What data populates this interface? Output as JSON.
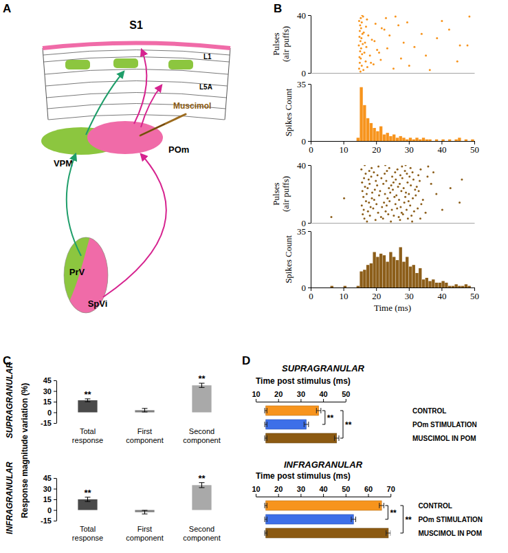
{
  "panel_labels": [
    "A",
    "B",
    "C",
    "D"
  ],
  "diagram": {
    "title": "S1",
    "layers": [
      "L1",
      "L5A"
    ],
    "nuclei": [
      "VPM",
      "POm",
      "PrV",
      "SpVi"
    ],
    "drug": "Muscimol"
  },
  "chart_data": [
    {
      "type": "scatter",
      "y_label": [
        "Pulses",
        "(air puffs)"
      ],
      "color": "#f7941d",
      "marker": "dot",
      "tick_labels": "y",
      "x": [
        15.2,
        16.1,
        14.8,
        17.3,
        15.6,
        19.2,
        15.0,
        16.8,
        21.4,
        15.3,
        14.9,
        18.1,
        15.7,
        16.4,
        15.1,
        20.3,
        15.4,
        17.0,
        14.7,
        15.9,
        16.6,
        15.2,
        18.7,
        15.5,
        14.9,
        17.6,
        15.8,
        16.2,
        15.0,
        22.5,
        15.4,
        16.9,
        15.1,
        19.8,
        15.6,
        14.8,
        17.2,
        15.3,
        16.0,
        15.7,
        25.3,
        30.1,
        18.4,
        44.8,
        27.6,
        35.2,
        20.9,
        23.4,
        31.7,
        45.6,
        47.9,
        28.4,
        19.5,
        38.6,
        24.1,
        33.9,
        42.3,
        21.7,
        26.8,
        29.5,
        40.1,
        23.0,
        48.5,
        25.9,
        36.4
      ],
      "values": [
        1,
        2,
        3,
        4,
        5,
        6,
        7,
        8,
        9,
        10,
        11,
        12,
        13,
        14,
        15,
        16,
        17,
        18,
        19,
        20,
        21,
        22,
        23,
        24,
        25,
        26,
        27,
        28,
        29,
        30,
        31,
        32,
        33,
        34,
        35,
        36,
        37,
        38,
        39,
        40,
        3,
        5,
        7,
        8,
        10,
        12,
        14,
        17,
        18,
        19,
        19,
        21,
        22,
        24,
        26,
        27,
        30,
        31,
        33,
        35,
        36,
        38,
        39,
        39,
        2
      ],
      "xlim": [
        0,
        50
      ],
      "ylim": [
        0,
        40
      ],
      "yticks": [
        0,
        40
      ]
    },
    {
      "type": "histogram",
      "y_label": "Spikes Count",
      "color": "#f7941d",
      "bins": [
        0,
        1,
        2,
        3,
        4,
        5,
        6,
        7,
        8,
        9,
        10,
        11,
        12,
        13,
        14,
        15,
        16,
        17,
        18,
        19,
        20,
        21,
        22,
        23,
        24,
        25,
        26,
        27,
        28,
        29,
        30,
        31,
        32,
        33,
        34,
        35,
        36,
        37,
        38,
        39,
        40,
        41,
        42,
        43,
        44,
        45,
        46,
        47,
        48,
        49,
        50
      ],
      "counts": [
        0,
        0,
        0,
        0,
        0,
        0,
        0,
        0,
        0,
        0,
        0,
        0,
        0,
        0,
        2,
        33,
        22,
        14,
        11,
        8,
        6,
        9,
        4,
        5,
        3,
        4,
        2,
        3,
        2,
        1,
        2,
        1,
        2,
        1,
        2,
        1,
        1,
        0,
        1,
        0,
        1,
        0,
        1,
        0,
        1,
        2,
        0,
        1,
        0,
        1
      ],
      "xlim": [
        0,
        50
      ],
      "xticks": [
        0,
        10,
        20,
        30,
        40,
        50
      ],
      "ylim": [
        0,
        35
      ],
      "yticks": [
        0,
        35
      ]
    },
    {
      "type": "scatter",
      "y_label": [
        "Pulses",
        "(air puffs)"
      ],
      "color": "#8c5e1a",
      "marker": "dot",
      "tick_labels": "y",
      "x": [
        17.2,
        24.5,
        31,
        19.8,
        27.3,
        16.4,
        22.1,
        29.7,
        33.5,
        6.3,
        21.5,
        26.9,
        18.1,
        25.4,
        30.8,
        15.9,
        23.7,
        28.2,
        20.6,
        27.8,
        35.1,
        17.5,
        22.9,
        31.6,
        16.2,
        24.8,
        29.3,
        40.2,
        19.1,
        26.4,
        32.7,
        18.3,
        21.8,
        27.5,
        15.6,
        23.2,
        30.4,
        20.1,
        25.9,
        33.8,
        17.8,
        22.4,
        28.6,
        45.5,
        16.9,
        24.1,
        29.9,
        19.4,
        27.0,
        34.3,
        10.2,
        18.7,
        23.5,
        31.2,
        16.1,
        25.6,
        28.9,
        20.9,
        26.2,
        32.1,
        17.1,
        22.7,
        30,
        38.4,
        18.8,
        24.3,
        29.1,
        15.8,
        21.2,
        27.7,
        33,
        19.6,
        25.1,
        31.9,
        17.4,
        23.9,
        28.4,
        42.7,
        16.6,
        26.7,
        32.4,
        20.3,
        24.6,
        30.6,
        18.0,
        22.2,
        27.2,
        36.8,
        15.7,
        25.3,
        29.6,
        19.9,
        23.1,
        33.3,
        17.7,
        26.0,
        31.4,
        46.2,
        16.3,
        21.6,
        28.0,
        18.5,
        24.9,
        30.2,
        35.7,
        20.4,
        27.4,
        32.9,
        16.8,
        22.6,
        29.4,
        19.3,
        25.8,
        31.1,
        37.5,
        17.9,
        23.3,
        28.8,
        15.5,
        26.5,
        33.6,
        18.6,
        24.0,
        30.5,
        20.7,
        27.9,
        35.9,
        16.5,
        22.8,
        29
      ],
      "values": [
        1,
        1,
        1,
        2,
        2,
        3,
        3,
        3,
        3,
        4,
        4,
        4,
        5,
        5,
        5,
        6,
        6,
        6,
        7,
        7,
        7,
        8,
        8,
        8,
        9,
        9,
        9,
        9,
        10,
        10,
        10,
        11,
        11,
        11,
        12,
        12,
        12,
        13,
        13,
        13,
        14,
        14,
        14,
        14,
        15,
        15,
        15,
        16,
        16,
        16,
        17,
        17,
        17,
        17,
        18,
        18,
        18,
        19,
        19,
        19,
        20,
        20,
        20,
        20,
        21,
        21,
        21,
        22,
        22,
        22,
        22,
        23,
        23,
        23,
        24,
        24,
        24,
        24,
        25,
        25,
        25,
        26,
        26,
        26,
        27,
        27,
        27,
        27,
        28,
        28,
        28,
        29,
        29,
        29,
        30,
        30,
        30,
        30,
        31,
        31,
        31,
        32,
        32,
        32,
        32,
        33,
        33,
        33,
        34,
        34,
        34,
        35,
        35,
        35,
        35,
        36,
        36,
        36,
        37,
        37,
        37,
        38,
        38,
        38,
        39,
        39,
        39,
        40,
        40,
        40
      ],
      "xlim": [
        0,
        50
      ],
      "ylim": [
        0,
        40
      ],
      "yticks": [
        0,
        40
      ]
    },
    {
      "type": "histogram",
      "y_label": "Spikes Count",
      "x_label": "Time (ms)",
      "color": "#8c5e1a",
      "bins": [
        0,
        1,
        2,
        3,
        4,
        5,
        6,
        7,
        8,
        9,
        10,
        11,
        12,
        13,
        14,
        15,
        16,
        17,
        18,
        19,
        20,
        21,
        22,
        23,
        24,
        25,
        26,
        27,
        28,
        29,
        30,
        31,
        32,
        33,
        34,
        35,
        36,
        37,
        38,
        39,
        40,
        41,
        42,
        43,
        44,
        45,
        46,
        47,
        48,
        49,
        50
      ],
      "counts": [
        0,
        0,
        0,
        0,
        0,
        0,
        1,
        0,
        0,
        0,
        1,
        0,
        0,
        0,
        1,
        10,
        11,
        14,
        15,
        22,
        19,
        21,
        20,
        16,
        22,
        19,
        17,
        25,
        16,
        19,
        13,
        14,
        9,
        12,
        5,
        6,
        4,
        5,
        3,
        3,
        4,
        3,
        1,
        1,
        2,
        1,
        1,
        2,
        1,
        0
      ],
      "xlim": [
        0,
        50
      ],
      "xticks": [
        0,
        10,
        20,
        30,
        40,
        50
      ],
      "ylim": [
        0,
        35
      ],
      "yticks": [
        0,
        35
      ]
    },
    {
      "type": "bar",
      "title": "SUPRAGRANULAR",
      "y_label": "Response magnitude variation (%)",
      "categories": [
        "Total response",
        "First component",
        "Second component"
      ],
      "values": [
        17,
        3,
        38
      ],
      "error": [
        2,
        2.5,
        3
      ],
      "colors": [
        "#4a4a4a",
        "#7f7f7f",
        "#a9a9a9"
      ],
      "significance": [
        "**",
        null,
        "**"
      ],
      "ylim": [
        -15,
        45
      ],
      "yticks": [
        -15,
        0,
        15,
        30,
        45
      ]
    },
    {
      "type": "bar",
      "title": "INFRAGRANULAR",
      "categories": [
        "Total response",
        "First component",
        "Second component"
      ],
      "values": [
        15,
        -3,
        35
      ],
      "error": [
        3,
        2.5,
        3.5
      ],
      "colors": [
        "#4a4a4a",
        "#7f7f7f",
        "#a9a9a9"
      ],
      "significance": [
        "**",
        null,
        "**"
      ],
      "ylim": [
        -15,
        45
      ],
      "yticks": [
        -15,
        0,
        15,
        30,
        45
      ]
    },
    {
      "type": "bar",
      "orientation": "horizontal",
      "title": "SUPRAGRANULAR",
      "x_label": "Time post stimulus (ms)",
      "categories": [
        "CONTROL",
        "POm STIMULATION",
        "MUSCIMOL IN POM"
      ],
      "start": [
        14.5,
        14.5,
        14.5
      ],
      "start_error": [
        0.5,
        0.5,
        0.5
      ],
      "values": [
        38,
        32.5,
        46
      ],
      "error": [
        1,
        1,
        1
      ],
      "colors": [
        "#f7941d",
        "#3d6fe8",
        "#8c5a12"
      ],
      "comparisons": [
        {
          "pair": [
            0,
            1
          ],
          "text": "**"
        },
        {
          "pair": [
            0,
            2
          ],
          "text": "**"
        }
      ],
      "xlim": [
        10,
        50
      ],
      "xticks": [
        10,
        20,
        30,
        40,
        50
      ]
    },
    {
      "type": "bar",
      "orientation": "horizontal",
      "title": "INFRAGRANULAR",
      "x_label": "Time post stimulus (ms)",
      "categories": [
        "CONTROL",
        "POm STIMULATION",
        "MUSCIMOL IN POM"
      ],
      "start": [
        14.5,
        14.5,
        14.5
      ],
      "start_error": [
        0.5,
        0.5,
        0.5
      ],
      "values": [
        66,
        53.5,
        69
      ],
      "error": [
        1,
        1,
        1
      ],
      "colors": [
        "#f7941d",
        "#3d6fe8",
        "#8c5a12"
      ],
      "comparisons": [
        {
          "pair": [
            0,
            1
          ],
          "text": "**"
        },
        {
          "pair": [
            0,
            2
          ],
          "text": "**"
        }
      ],
      "xlim": [
        10,
        70
      ],
      "xticks": [
        10,
        20,
        30,
        40,
        50,
        60,
        70
      ]
    }
  ]
}
